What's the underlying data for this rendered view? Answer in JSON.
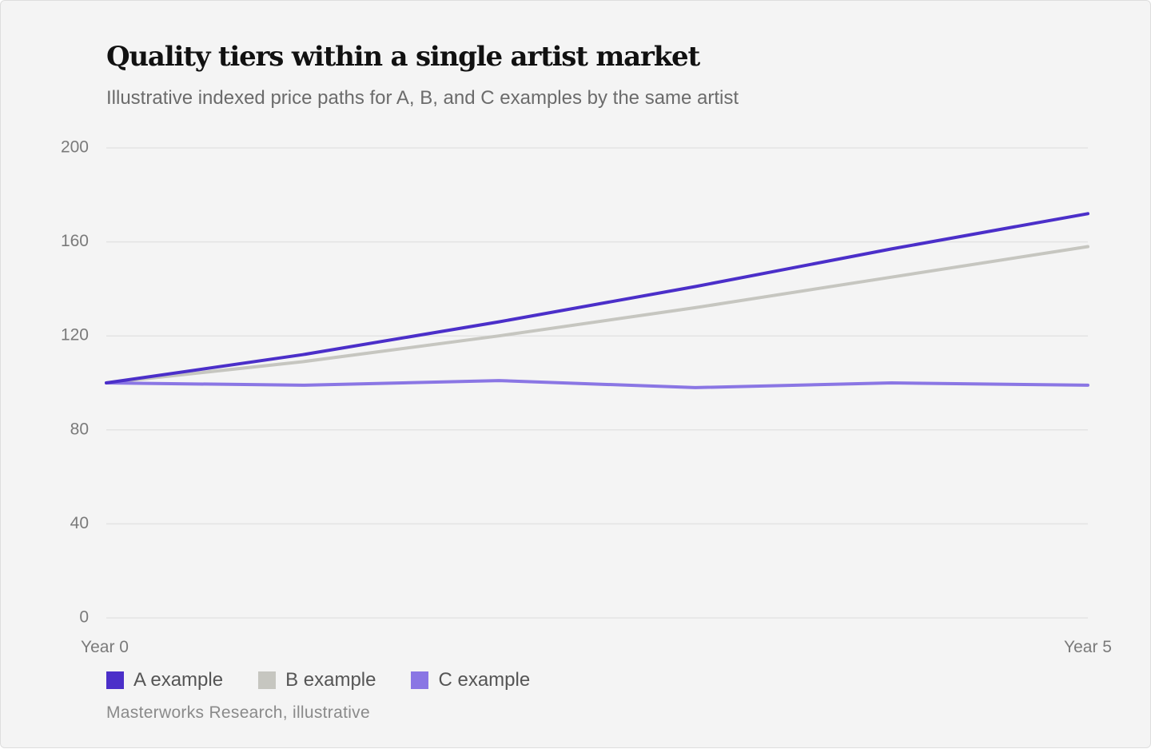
{
  "chart_data": {
    "type": "line",
    "title": "Quality tiers within a single artist market",
    "subtitle": "Illustrative indexed price paths for A, B, and C examples by the same artist",
    "x": [
      0,
      1,
      2,
      3,
      4,
      5
    ],
    "x_tick_labels": [
      {
        "x": 0,
        "label": "Year 0"
      },
      {
        "x": 5,
        "label": "Year 5"
      }
    ],
    "y_ticks": [
      0,
      40,
      80,
      120,
      160,
      200
    ],
    "ylim": [
      0,
      200
    ],
    "xlabel": "",
    "ylabel": "",
    "grid": true,
    "legend_position": "bottom-left",
    "series": [
      {
        "name": "A example",
        "color": "#4b2fc9",
        "values": [
          100,
          112,
          126,
          141,
          157,
          172
        ]
      },
      {
        "name": "B example",
        "color": "#c6c6c0",
        "values": [
          100,
          109,
          120,
          132,
          145,
          158
        ]
      },
      {
        "name": "C example",
        "color": "#8a76e4",
        "values": [
          100,
          99,
          101,
          98,
          100,
          99
        ]
      }
    ],
    "source": "Masterworks Research, illustrative"
  }
}
